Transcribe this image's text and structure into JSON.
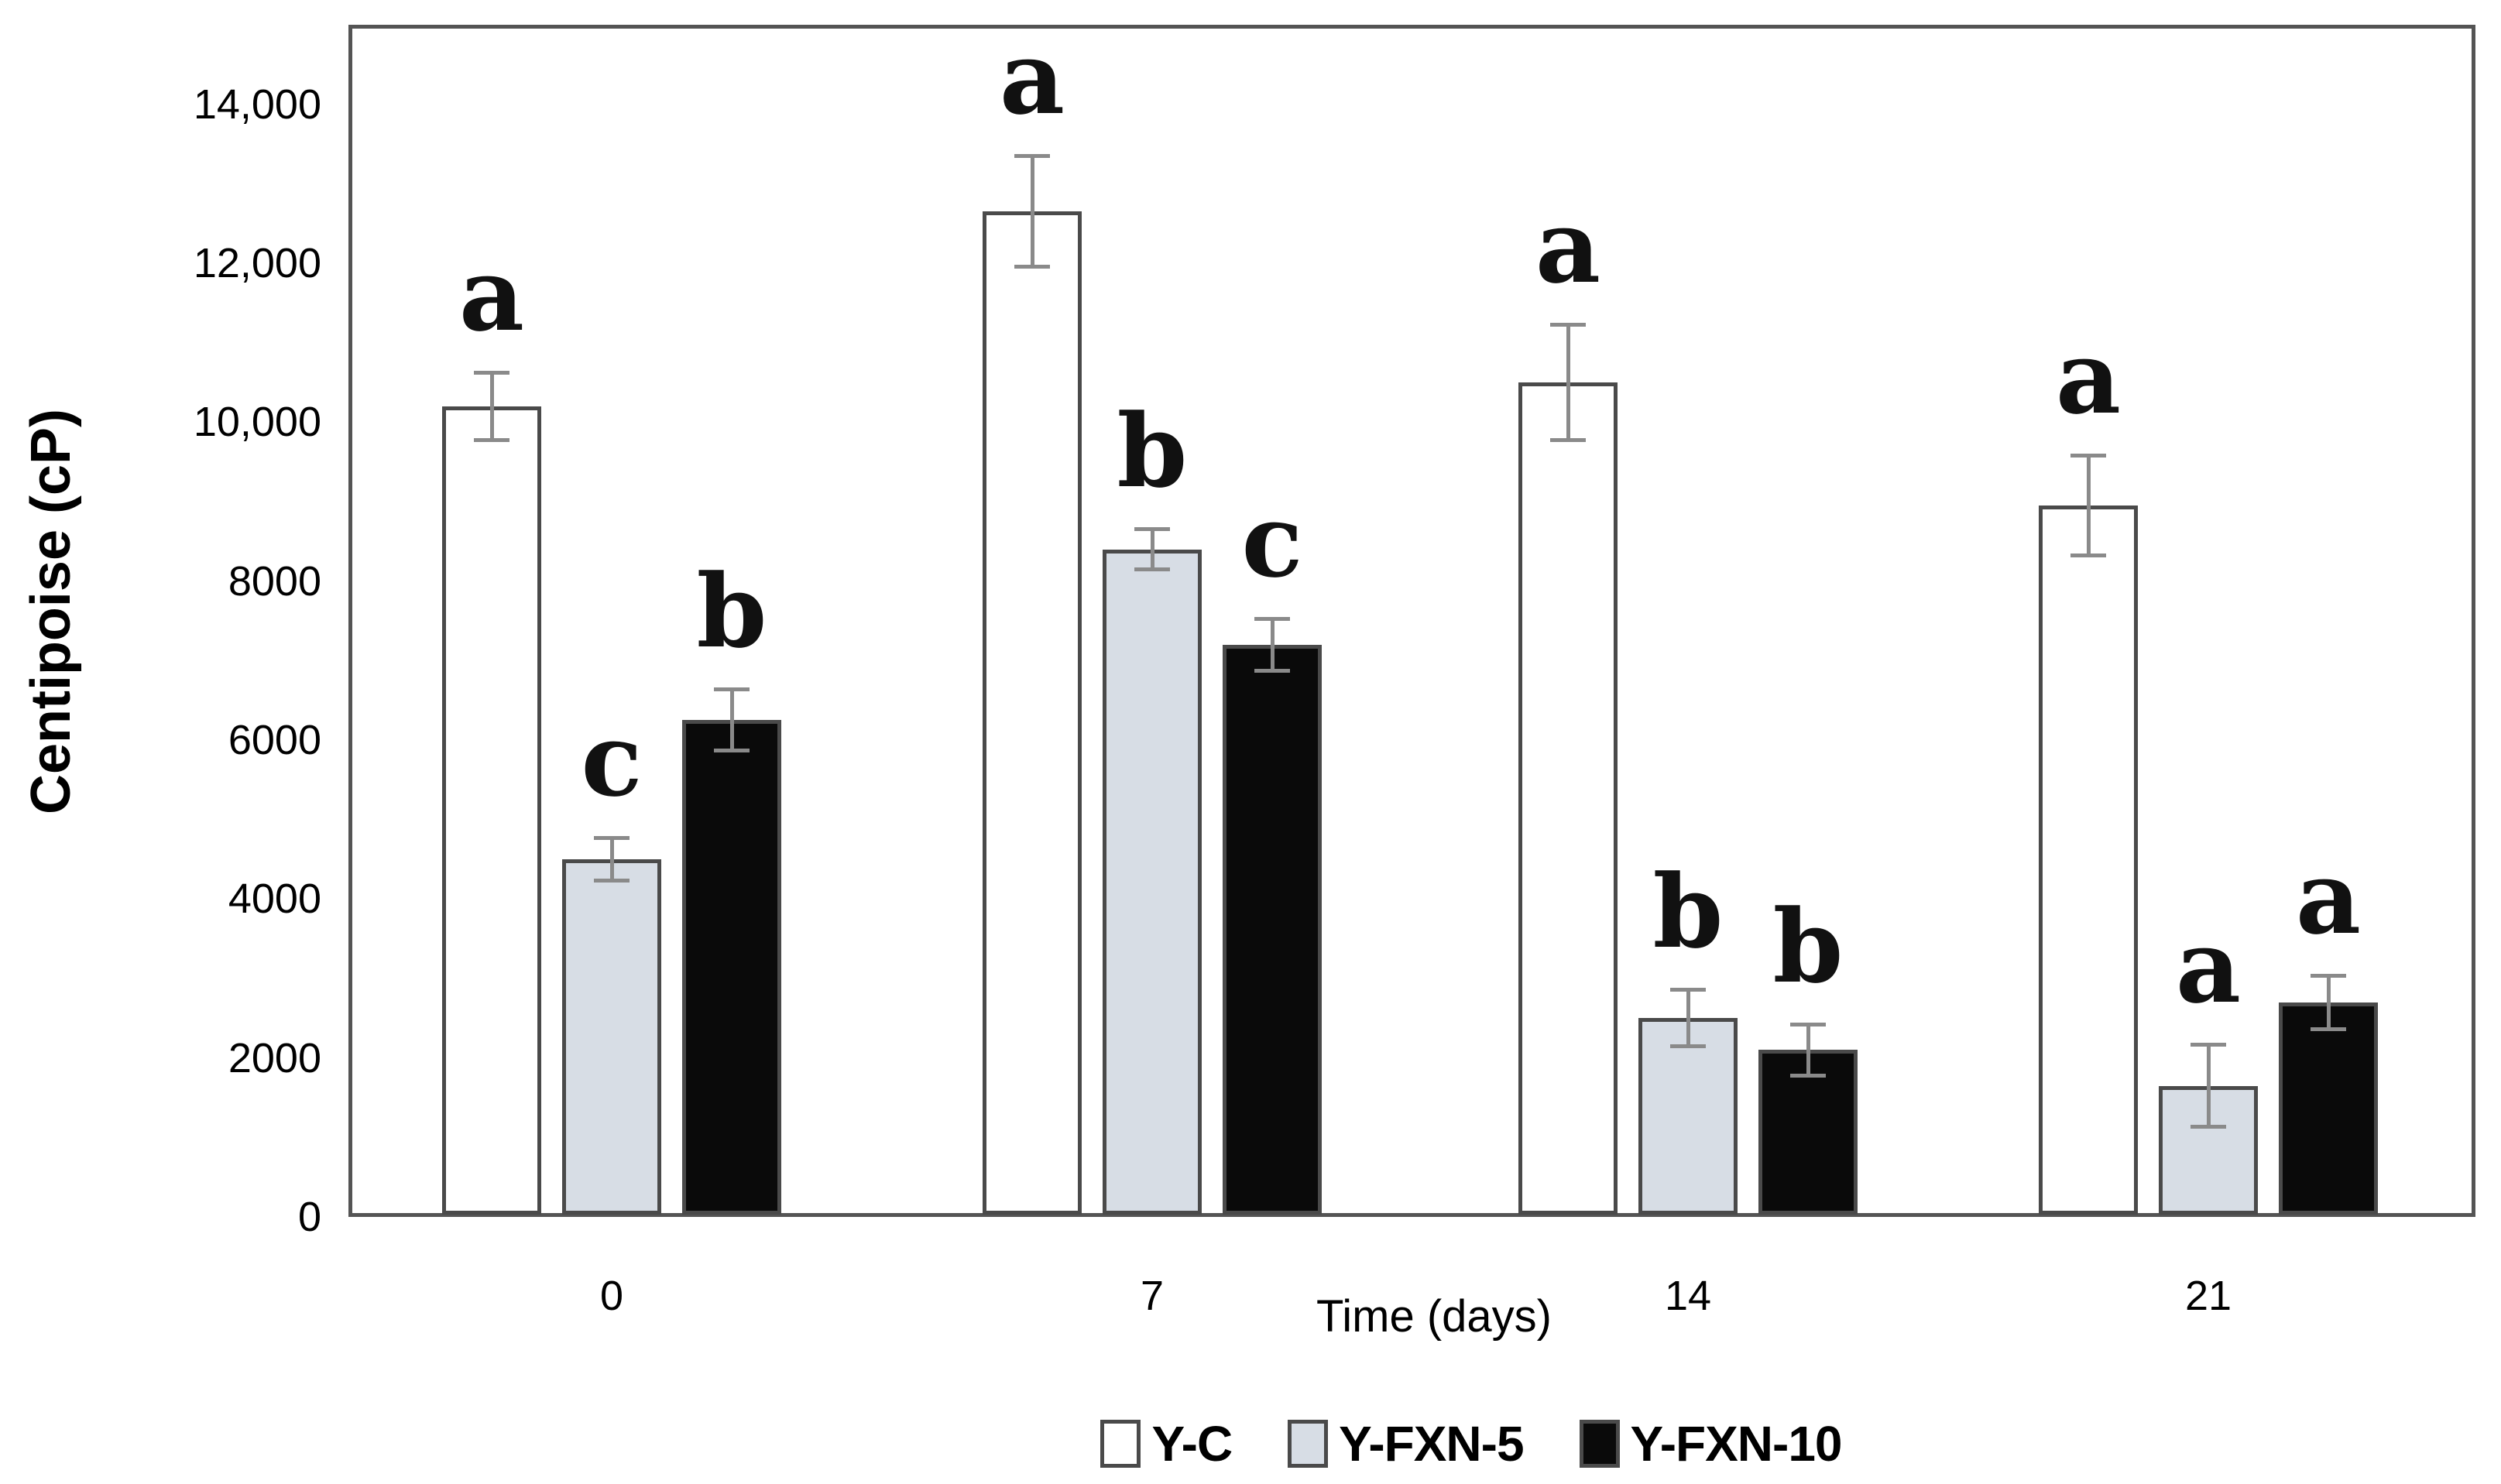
{
  "chart_data": {
    "type": "bar",
    "title": "",
    "xlabel": "Time (days)",
    "ylabel": "Centipoise (cP)",
    "categories": [
      "0",
      "7",
      "14",
      "21"
    ],
    "series": [
      {
        "name": "Y-C",
        "fill": "#ffffff",
        "values": [
          10200,
          12650,
          10500,
          8950
        ],
        "errors": [
          430,
          700,
          730,
          630
        ],
        "letters": [
          "a",
          "a",
          "a",
          "a"
        ]
      },
      {
        "name": "Y-FXN-5",
        "fill": "#d7dde5",
        "values": [
          4500,
          8400,
          2500,
          1650
        ],
        "errors": [
          270,
          260,
          360,
          520
        ],
        "letters": [
          "c",
          "b",
          "b",
          "a"
        ]
      },
      {
        "name": "Y-FXN-10",
        "fill": "#0a0a0a",
        "values": [
          6250,
          7200,
          2100,
          2700
        ],
        "errors": [
          390,
          330,
          330,
          340
        ],
        "letters": [
          "b",
          "c",
          "b",
          "a"
        ]
      }
    ],
    "y_ticks": [
      "0",
      "2000",
      "4000",
      "6000",
      "8000",
      "10,000",
      "12,000",
      "14,000"
    ],
    "ylim": [
      0,
      15000
    ],
    "grid": false,
    "legend_position": "bottom",
    "colors": {
      "plot_border": "#545454",
      "bar_border": "#4a4a4a",
      "error_bar": "#8a8a8a",
      "text": "#000000"
    }
  }
}
